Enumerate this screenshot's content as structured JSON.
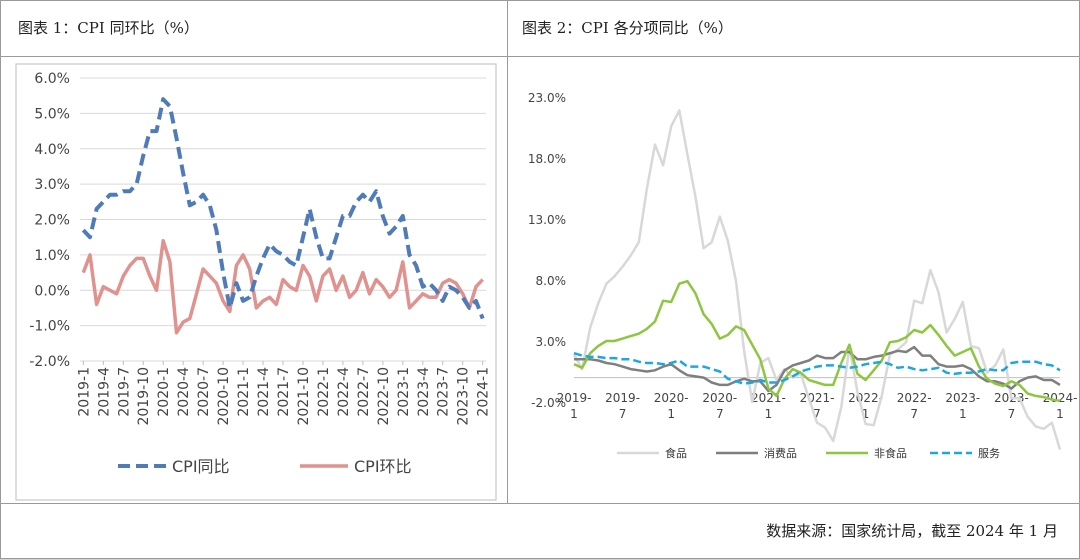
{
  "chart1": {
    "title": "图表 1：CPI 同环比（%）",
    "chart_data": {
      "type": "line",
      "title": "图表 1：CPI 同环比（%）",
      "xlabel": "",
      "ylabel": "",
      "ylim": [
        -2.0,
        6.0
      ],
      "ytick_values": [
        -2,
        -1,
        0,
        1,
        2,
        3,
        4,
        5,
        6
      ],
      "ytick_labels": [
        "-2.0%",
        "-1.0%",
        "0.0%",
        "1.0%",
        "2.0%",
        "3.0%",
        "4.0%",
        "5.0%",
        "6.0%"
      ],
      "x_tick_labels": [
        "2019-1",
        "2019-4",
        "2019-7",
        "2019-10",
        "2020-1",
        "2020-4",
        "2020-7",
        "2020-10",
        "2021-1",
        "2021-4",
        "2021-7",
        "2021-10",
        "2022-1",
        "2022-4",
        "2022-7",
        "2022-10",
        "2023-1",
        "2023-4",
        "2023-7",
        "2023-10",
        "2024-1"
      ],
      "x": [
        "2019-1",
        "2019-2",
        "2019-3",
        "2019-4",
        "2019-5",
        "2019-6",
        "2019-7",
        "2019-8",
        "2019-9",
        "2019-10",
        "2019-11",
        "2019-12",
        "2020-1",
        "2020-2",
        "2020-3",
        "2020-4",
        "2020-5",
        "2020-6",
        "2020-7",
        "2020-8",
        "2020-9",
        "2020-10",
        "2020-11",
        "2020-12",
        "2021-1",
        "2021-2",
        "2021-3",
        "2021-4",
        "2021-5",
        "2021-6",
        "2021-7",
        "2021-8",
        "2021-9",
        "2021-10",
        "2021-11",
        "2021-12",
        "2022-1",
        "2022-2",
        "2022-3",
        "2022-4",
        "2022-5",
        "2022-6",
        "2022-7",
        "2022-8",
        "2022-9",
        "2022-10",
        "2022-11",
        "2022-12",
        "2023-1",
        "2023-2",
        "2023-3",
        "2023-4",
        "2023-5",
        "2023-6",
        "2023-7",
        "2023-8",
        "2023-9",
        "2023-10",
        "2023-11",
        "2023-12",
        "2024-1"
      ],
      "series": [
        {
          "name": "CPI同比",
          "color": "#4f7bb8",
          "dash": true,
          "values": [
            1.7,
            1.5,
            2.3,
            2.5,
            2.7,
            2.7,
            2.8,
            2.8,
            3.0,
            3.8,
            4.5,
            4.5,
            5.4,
            5.2,
            4.3,
            3.3,
            2.4,
            2.5,
            2.7,
            2.4,
            1.7,
            0.5,
            -0.5,
            0.2,
            -0.3,
            -0.2,
            0.4,
            0.9,
            1.3,
            1.1,
            1.0,
            0.8,
            0.7,
            1.5,
            2.3,
            1.5,
            0.9,
            0.9,
            1.5,
            2.1,
            2.1,
            2.5,
            2.7,
            2.5,
            2.8,
            2.1,
            1.6,
            1.8,
            2.1,
            1.0,
            0.7,
            0.1,
            0.2,
            0.0,
            -0.3,
            0.1,
            0.0,
            -0.2,
            -0.5,
            -0.3,
            -0.8
          ]
        },
        {
          "name": "CPI环比",
          "color": "#e0928f",
          "dash": false,
          "values": [
            0.5,
            1.0,
            -0.4,
            0.1,
            0.0,
            -0.1,
            0.4,
            0.7,
            0.9,
            0.9,
            0.4,
            0.0,
            1.4,
            0.8,
            -1.2,
            -0.9,
            -0.8,
            -0.1,
            0.6,
            0.4,
            0.2,
            -0.3,
            -0.6,
            0.7,
            1.0,
            0.6,
            -0.5,
            -0.3,
            -0.2,
            -0.4,
            0.3,
            0.1,
            0.0,
            0.7,
            0.4,
            -0.3,
            0.4,
            0.6,
            0.0,
            0.4,
            -0.2,
            0.0,
            0.5,
            -0.1,
            0.3,
            0.1,
            -0.2,
            0.0,
            0.8,
            -0.5,
            -0.3,
            -0.1,
            -0.2,
            -0.2,
            0.2,
            0.3,
            0.2,
            -0.1,
            -0.5,
            0.1,
            0.3
          ]
        }
      ],
      "legend": "bottom"
    }
  },
  "chart2": {
    "title": "图表 2：CPI 各分项同比（%）",
    "chart_data": {
      "type": "line",
      "title": "图表 2：CPI 各分项同比（%）",
      "xlabel": "",
      "ylabel": "",
      "ylim": [
        -2.0,
        23.0
      ],
      "ytick_values": [
        -2,
        3,
        8,
        13,
        18,
        23
      ],
      "ytick_labels": [
        "-2.0%",
        "3.0%",
        "8.0%",
        "13.0%",
        "18.0%",
        "23.0%"
      ],
      "x_tick_labels_top": [
        "2019-",
        "2019-",
        "2020-",
        "2020-",
        "2021-",
        "2021-",
        "2022-",
        "2022-",
        "2023-",
        "2023-",
        "2024-"
      ],
      "x_tick_labels_bottom": [
        "1",
        "7",
        "1",
        "7",
        "1",
        "7",
        "1",
        "7",
        "1",
        "7",
        "1"
      ],
      "x": [
        "2019-1",
        "2019-2",
        "2019-3",
        "2019-4",
        "2019-5",
        "2019-6",
        "2019-7",
        "2019-8",
        "2019-9",
        "2019-10",
        "2019-11",
        "2019-12",
        "2020-1",
        "2020-2",
        "2020-3",
        "2020-4",
        "2020-5",
        "2020-6",
        "2020-7",
        "2020-8",
        "2020-9",
        "2020-10",
        "2020-11",
        "2020-12",
        "2021-1",
        "2021-2",
        "2021-3",
        "2021-4",
        "2021-5",
        "2021-6",
        "2021-7",
        "2021-8",
        "2021-9",
        "2021-10",
        "2021-11",
        "2021-12",
        "2022-1",
        "2022-2",
        "2022-3",
        "2022-4",
        "2022-5",
        "2022-6",
        "2022-7",
        "2022-8",
        "2022-9",
        "2022-10",
        "2022-11",
        "2022-12",
        "2023-1",
        "2023-2",
        "2023-3",
        "2023-4",
        "2023-5",
        "2023-6",
        "2023-7",
        "2023-8",
        "2023-9",
        "2023-10",
        "2023-11",
        "2023-12",
        "2024-1"
      ],
      "series": [
        {
          "name": "食品",
          "color": "#d8d8d8",
          "dash": false,
          "values": [
            1.9,
            0.7,
            4.1,
            6.1,
            7.7,
            8.3,
            9.1,
            10.0,
            11.1,
            15.5,
            19.1,
            17.4,
            20.6,
            21.9,
            18.3,
            14.8,
            10.6,
            11.1,
            13.2,
            11.2,
            7.9,
            2.2,
            -2.0,
            1.2,
            1.6,
            -0.2,
            0.7,
            0.0,
            0.3,
            -1.7,
            -3.7,
            -4.1,
            -5.2,
            -2.4,
            2.5,
            -1.2,
            -3.8,
            -3.9,
            -1.5,
            1.9,
            2.3,
            2.9,
            6.3,
            6.1,
            8.8,
            7.0,
            3.7,
            4.8,
            6.2,
            2.6,
            2.4,
            0.4,
            1.0,
            2.3,
            -1.7,
            -1.7,
            -3.2,
            -4.0,
            -4.2,
            -3.7,
            -5.9
          ]
        },
        {
          "name": "消费品",
          "color": "#7f7f7f",
          "dash": false,
          "values": [
            1.5,
            1.5,
            1.5,
            1.4,
            1.2,
            1.1,
            0.9,
            0.7,
            0.6,
            0.5,
            0.6,
            0.9,
            1.1,
            0.6,
            0.2,
            0.1,
            0.0,
            -0.4,
            -0.6,
            -0.6,
            -0.3,
            -0.1,
            -0.3,
            -0.3,
            -1.1,
            -0.6,
            0.6,
            1.0,
            1.2,
            1.4,
            1.8,
            1.6,
            1.6,
            2.1,
            2.1,
            1.5,
            1.5,
            1.7,
            1.8,
            2.0,
            2.2,
            2.1,
            2.5,
            1.8,
            1.8,
            1.1,
            0.9,
            0.9,
            1.0,
            0.7,
            0.1,
            -0.3,
            -0.3,
            -0.5,
            -0.9,
            -0.3,
            0.0,
            0.1,
            -0.2,
            -0.2,
            -0.6
          ]
        },
        {
          "name": "非食品",
          "color": "#8dc63f",
          "dash": false,
          "values": [
            1.1,
            0.8,
            2.0,
            2.6,
            3.0,
            3.0,
            3.2,
            3.4,
            3.6,
            4.0,
            4.6,
            6.3,
            6.2,
            7.7,
            7.9,
            6.9,
            5.2,
            4.4,
            3.2,
            3.5,
            4.2,
            3.9,
            2.7,
            1.5,
            -0.9,
            -1.5,
            -0.1,
            0.7,
            0.4,
            -0.2,
            -0.4,
            -0.6,
            -0.6,
            1.2,
            2.7,
            0.3,
            -0.2,
            0.6,
            1.4,
            2.9,
            3.0,
            3.3,
            3.9,
            3.7,
            4.3,
            3.5,
            2.6,
            1.8,
            2.1,
            2.4,
            0.9,
            -0.1,
            -0.5,
            -0.7,
            -0.3,
            -0.6,
            -1.3,
            -1.5,
            -1.6,
            -1.8,
            -1.9
          ]
        },
        {
          "name": "服务",
          "color": "#1ba8e0",
          "dash": true,
          "values": [
            2.0,
            1.8,
            1.7,
            1.7,
            1.6,
            1.6,
            1.5,
            1.5,
            1.3,
            1.2,
            1.2,
            1.1,
            1.2,
            1.4,
            0.9,
            0.9,
            0.9,
            0.7,
            0.5,
            -0.1,
            -0.3,
            -0.5,
            -0.4,
            -0.2,
            -0.4,
            -0.4,
            -0.2,
            0.1,
            0.5,
            0.7,
            0.9,
            1.0,
            1.0,
            0.9,
            0.8,
            0.9,
            1.1,
            1.2,
            1.3,
            1.1,
            0.8,
            0.9,
            0.7,
            0.6,
            0.7,
            0.8,
            0.4,
            0.3,
            0.4,
            0.4,
            0.5,
            0.7,
            0.6,
            0.6,
            1.2,
            1.3,
            1.3,
            1.3,
            1.1,
            1.0,
            0.6
          ]
        }
      ],
      "legend": "bottom"
    }
  },
  "source": "数据来源：国家统计局，截至 2024 年 1 月"
}
